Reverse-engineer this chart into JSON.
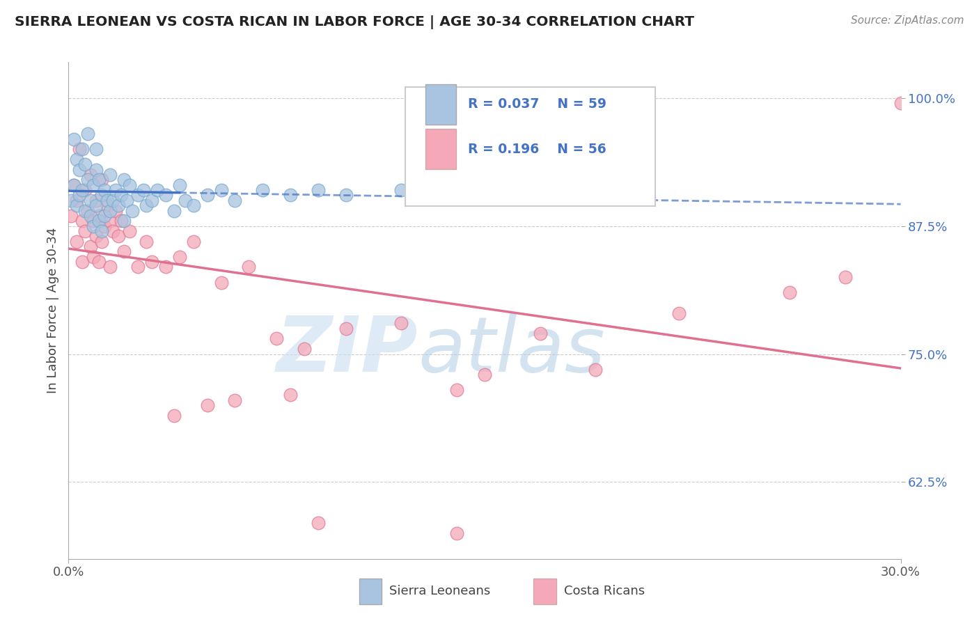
{
  "title": "SIERRA LEONEAN VS COSTA RICAN IN LABOR FORCE | AGE 30-34 CORRELATION CHART",
  "source_text": "Source: ZipAtlas.com",
  "ylabel": "In Labor Force | Age 30-34",
  "xlim": [
    0.0,
    30.0
  ],
  "ylim": [
    55.0,
    103.5
  ],
  "yticks": [
    62.5,
    75.0,
    87.5,
    100.0
  ],
  "ytick_labels": [
    "62.5%",
    "75.0%",
    "87.5%",
    "100.0%"
  ],
  "xticks": [
    0.0,
    30.0
  ],
  "xtick_labels": [
    "0.0%",
    "30.0%"
  ],
  "legend_labels": [
    "Sierra Leoneans",
    "Costa Ricans"
  ],
  "r_values": [
    0.037,
    0.196
  ],
  "n_values": [
    59,
    56
  ],
  "blue_color": "#a8c4e0",
  "blue_edge_color": "#7aaace",
  "pink_color": "#f4a8b8",
  "pink_edge_color": "#e07898",
  "blue_line_color": "#4472c4",
  "pink_line_color": "#e07090",
  "legend_r_color": "#4472c4",
  "sierra_x": [
    0.1,
    0.2,
    0.2,
    0.3,
    0.3,
    0.4,
    0.4,
    0.5,
    0.5,
    0.6,
    0.6,
    0.7,
    0.7,
    0.8,
    0.8,
    0.9,
    0.9,
    1.0,
    1.0,
    1.0,
    1.1,
    1.1,
    1.2,
    1.2,
    1.3,
    1.3,
    1.4,
    1.5,
    1.5,
    1.6,
    1.7,
    1.8,
    1.9,
    2.0,
    2.0,
    2.1,
    2.2,
    2.3,
    2.5,
    2.7,
    2.8,
    3.0,
    3.2,
    3.5,
    3.8,
    4.0,
    4.2,
    4.5,
    5.0,
    5.5,
    6.0,
    7.0,
    8.0,
    9.0,
    10.0,
    12.0,
    14.0,
    16.0,
    20.0
  ],
  "sierra_y": [
    90.0,
    96.0,
    91.5,
    94.0,
    89.5,
    93.0,
    90.5,
    95.0,
    91.0,
    93.5,
    89.0,
    96.5,
    92.0,
    90.0,
    88.5,
    91.5,
    87.5,
    95.0,
    93.0,
    89.5,
    92.0,
    88.0,
    90.5,
    87.0,
    91.0,
    88.5,
    90.0,
    92.5,
    89.0,
    90.0,
    91.0,
    89.5,
    90.5,
    92.0,
    88.0,
    90.0,
    91.5,
    89.0,
    90.5,
    91.0,
    89.5,
    90.0,
    91.0,
    90.5,
    89.0,
    91.5,
    90.0,
    89.5,
    90.5,
    91.0,
    90.0,
    91.0,
    90.5,
    91.0,
    90.5,
    91.0,
    90.5,
    91.0,
    90.5
  ],
  "costa_x": [
    0.1,
    0.2,
    0.3,
    0.3,
    0.4,
    0.5,
    0.5,
    0.6,
    0.6,
    0.7,
    0.8,
    0.8,
    0.9,
    0.9,
    1.0,
    1.0,
    1.1,
    1.1,
    1.2,
    1.2,
    1.3,
    1.4,
    1.5,
    1.5,
    1.6,
    1.7,
    1.8,
    1.9,
    2.0,
    2.2,
    2.5,
    2.8,
    3.0,
    3.5,
    4.0,
    4.5,
    5.5,
    6.5,
    7.5,
    8.5,
    10.0,
    12.0,
    14.0,
    15.0,
    17.0,
    19.0,
    22.0,
    26.0,
    28.0,
    30.0,
    5.0,
    8.0,
    3.8,
    6.0,
    9.0,
    14.0
  ],
  "costa_y": [
    88.5,
    91.5,
    90.0,
    86.0,
    95.0,
    88.0,
    84.0,
    91.0,
    87.0,
    89.0,
    92.5,
    85.5,
    88.0,
    84.5,
    90.0,
    86.5,
    88.5,
    84.0,
    92.0,
    86.0,
    87.5,
    89.5,
    88.0,
    83.5,
    87.0,
    89.0,
    86.5,
    88.0,
    85.0,
    87.0,
    83.5,
    86.0,
    84.0,
    83.5,
    84.5,
    86.0,
    82.0,
    83.5,
    76.5,
    75.5,
    77.5,
    78.0,
    71.5,
    73.0,
    77.0,
    73.5,
    79.0,
    81.0,
    82.5,
    99.5,
    70.0,
    71.0,
    69.0,
    70.5,
    58.5,
    57.5
  ]
}
